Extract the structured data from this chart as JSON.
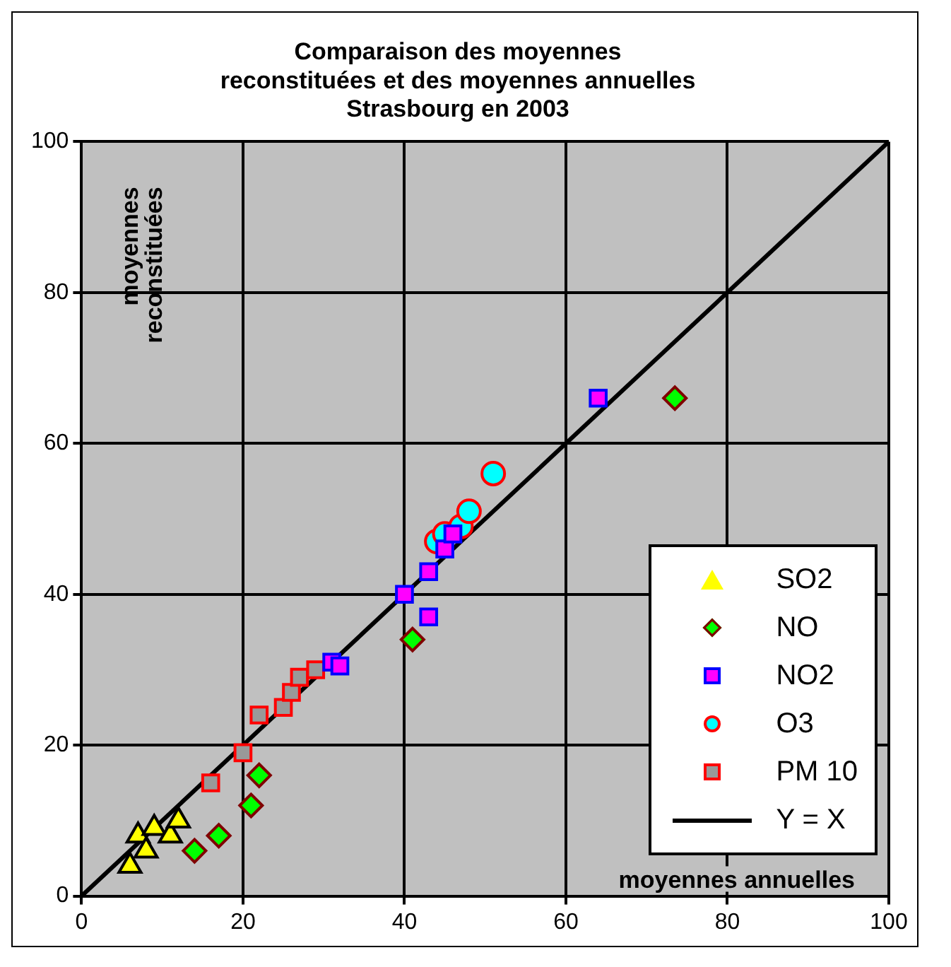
{
  "chart_data": {
    "type": "scatter",
    "title": "Comparaison des moyennes reconstituées et des moyennes annuelles Strasbourg en 2003",
    "xlabel": "moyennes annuelles",
    "ylabel": "moyennes reconstituées",
    "xlim": [
      0,
      100
    ],
    "ylim": [
      0,
      100
    ],
    "xticks": [
      0,
      20,
      40,
      60,
      80,
      100
    ],
    "yticks": [
      0,
      20,
      40,
      60,
      80,
      100
    ],
    "grid": true,
    "legend": "bottom right",
    "series": [
      {
        "name": "SO2",
        "color": "#ffff00",
        "marker": "triangle",
        "x": [
          6,
          7,
          8,
          9,
          11,
          12
        ],
        "values": [
          4,
          8,
          6,
          9,
          8,
          10
        ]
      },
      {
        "name": "NO",
        "color": "#00ff00",
        "marker": "diamond",
        "x": [
          14,
          17,
          21,
          22,
          41,
          73.5
        ],
        "values": [
          6,
          8,
          12,
          16,
          34,
          66
        ]
      },
      {
        "name": "NO2",
        "color": "#ff00ff",
        "marker": "square",
        "x": [
          31,
          32,
          40,
          43,
          43,
          45,
          46,
          64
        ],
        "values": [
          31,
          30.5,
          40,
          43,
          37,
          46,
          48,
          66
        ]
      },
      {
        "name": "O3",
        "color": "#00ffff",
        "marker": "circle",
        "x": [
          44,
          45,
          47,
          48,
          51
        ],
        "values": [
          47,
          48,
          49,
          51,
          56
        ]
      },
      {
        "name": "PM 10",
        "color": "#999999",
        "marker": "square",
        "x": [
          16,
          20,
          22,
          25,
          26,
          27,
          29
        ],
        "values": [
          15,
          19,
          24,
          25,
          27,
          29,
          30
        ]
      },
      {
        "name": "Y = X",
        "color": "#000000",
        "type": "line",
        "marker": "none",
        "x": [
          0,
          100
        ],
        "values": [
          0,
          100
        ]
      }
    ]
  }
}
